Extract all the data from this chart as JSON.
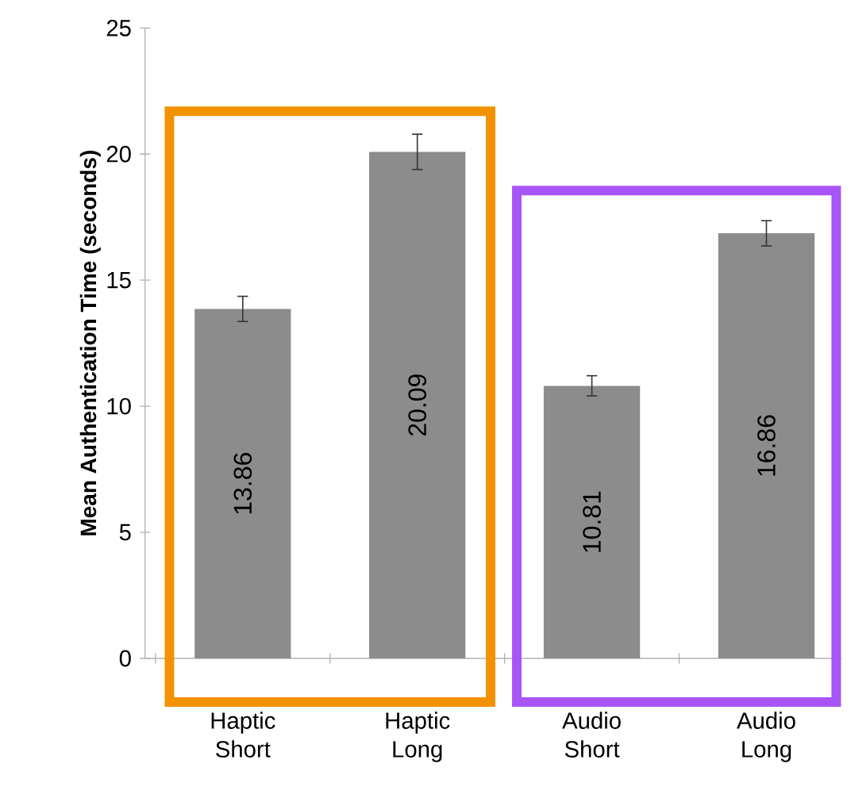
{
  "chart_data": {
    "type": "bar",
    "ylabel": "Mean Authentication Time (seconds)",
    "categories": [
      "Haptic Short",
      "Haptic Long",
      "Audio Short",
      "Audio Long"
    ],
    "values": [
      13.86,
      20.09,
      10.81,
      16.86
    ],
    "errors": [
      0.5,
      0.7,
      0.4,
      0.5
    ],
    "color": "#8c8c8c",
    "data_labels": true,
    "ylim": [
      0,
      25
    ],
    "yticks": [
      0,
      5,
      10,
      15,
      20,
      25
    ],
    "grid": false
  }
}
